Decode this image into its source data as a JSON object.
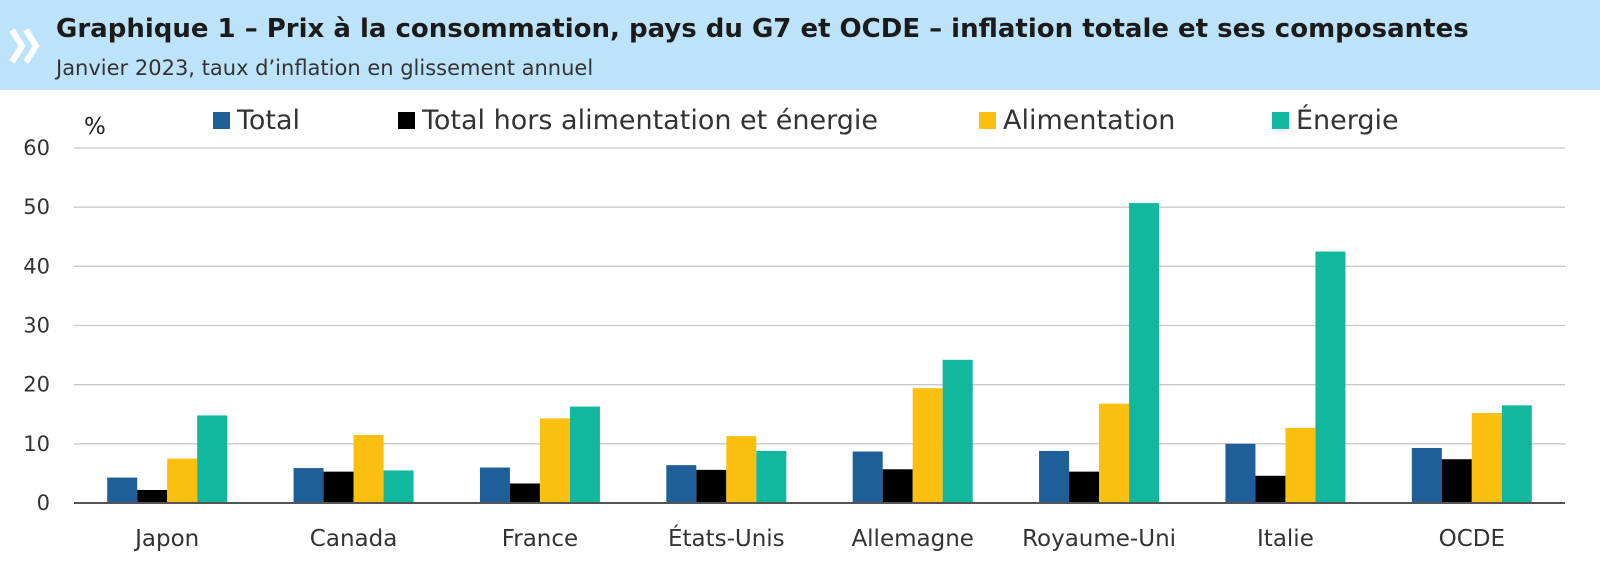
{
  "header": {
    "title": "Graphique 1 – Prix à la consommation, pays du G7 et OCDE – inflation totale et ses composantes",
    "subtitle": "Janvier 2023, taux d’inflation en glissement annuel"
  },
  "chart_data": {
    "type": "bar",
    "ylabel": "%",
    "ylim": [
      0,
      60
    ],
    "yticks": [
      0,
      10,
      20,
      30,
      40,
      50,
      60
    ],
    "grid": true,
    "legend_position": "top",
    "categories": [
      "Japon",
      "Canada",
      "France",
      "États-Unis",
      "Allemagne",
      "Royaume-Uni",
      "Italie",
      "OCDE"
    ],
    "series": [
      {
        "name": "Total",
        "color": "#1f5f99",
        "values": [
          4.3,
          5.9,
          6.0,
          6.4,
          8.7,
          8.8,
          10.0,
          9.3
        ]
      },
      {
        "name": "Total hors alimentation et énergie",
        "color": "#000000",
        "values": [
          2.2,
          5.3,
          3.3,
          5.6,
          5.7,
          5.3,
          4.6,
          7.4
        ]
      },
      {
        "name": "Alimentation",
        "color": "#fbbf0f",
        "values": [
          7.5,
          11.5,
          14.3,
          11.3,
          19.4,
          16.8,
          12.7,
          15.2
        ]
      },
      {
        "name": "Énergie",
        "color": "#12b89e",
        "values": [
          14.8,
          5.5,
          16.3,
          8.8,
          24.2,
          50.7,
          42.5,
          16.5
        ]
      }
    ]
  }
}
